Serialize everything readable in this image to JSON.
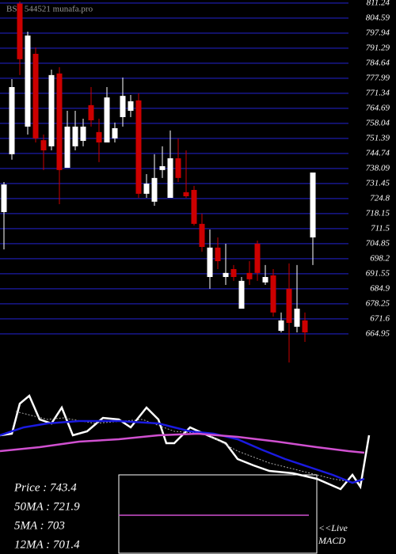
{
  "chart_data": [
    {
      "type": "candlestick",
      "title": "BSE 544521 munafa.pro",
      "up_color": "#ffffff",
      "down_color": "#cc0000",
      "grid_color": "#1c1ca8",
      "xlim": [
        -0.5,
        49.5
      ],
      "ylim": [
        651.6,
        812.6
      ],
      "yticks": [
        811.24,
        804.59,
        797.94,
        791.29,
        784.64,
        777.99,
        771.34,
        764.69,
        758.04,
        751.39,
        744.74,
        738.09,
        731.45,
        724.8,
        718.15,
        711.5,
        704.85,
        698.2,
        691.55,
        684.9,
        678.25,
        671.6,
        664.95
      ],
      "open": [
        718.8,
        744.4,
        811.0,
        756.6,
        788.8,
        750.6,
        747.9,
        780.1,
        738.4,
        747.9,
        750.3,
        766.1,
        754.2,
        749.6,
        751.4,
        760.8,
        763.6,
        768.2,
        726.9,
        723.4,
        737.4,
        725.1,
        742.6,
        727.6,
        728.6,
        713.6,
        690.1,
        703.1,
        690.1,
        693.6,
        676.1,
        691.9,
        704.8,
        687.7,
        690.8,
        666.3,
        684.9,
        668.1,
        670.9,
        707.6
      ],
      "high": [
        732.1,
        777.6,
        812.0,
        798.6,
        791.6,
        753.1,
        781.8,
        782.9,
        763.6,
        763.6,
        760.1,
        774.1,
        760.1,
        774.1,
        758.4,
        778.3,
        770.6,
        771.3,
        735.6,
        744.4,
        747.9,
        754.9,
        751.4,
        746.1,
        730.4,
        718.1,
        711.1,
        707.6,
        704.8,
        695.4,
        690.1,
        697.1,
        706.2,
        695.4,
        693.6,
        674.4,
        696.1,
        695.4,
        674.4,
        736.3
      ],
      "low": [
        702.3,
        742.0,
        779.4,
        753.1,
        749.6,
        737.4,
        746.1,
        722.3,
        738.4,
        746.1,
        747.9,
        756.6,
        740.9,
        749.6,
        749.6,
        756.6,
        760.8,
        725.1,
        725.1,
        721.6,
        733.9,
        725.1,
        732.1,
        725.1,
        712.9,
        701.3,
        684.9,
        693.6,
        686.6,
        688.4,
        676.1,
        686.6,
        688.4,
        686.6,
        672.6,
        665.6,
        652.3,
        665.6,
        661.4,
        695.4
      ],
      "close": [
        731.0,
        774.1,
        786.4,
        796.9,
        751.4,
        746.1,
        779.4,
        737.4,
        756.6,
        756.6,
        756.6,
        759.4,
        749.6,
        769.5,
        755.9,
        770.2,
        767.8,
        726.9,
        731.4,
        733.9,
        739.1,
        742.6,
        733.9,
        725.8,
        713.6,
        703.4,
        703.1,
        697.1,
        691.9,
        690.1,
        688.4,
        689.1,
        691.9,
        690.1,
        674.4,
        670.9,
        669.8,
        676.1,
        665.6,
        736.3
      ]
    },
    {
      "type": "line",
      "xlim": [
        0,
        50
      ],
      "ylim": [
        645,
        780
      ],
      "legend": [
        "Price   : 743.4",
        "50MA  : 721.9",
        "5MA  : 703",
        "12MA  : 701.4"
      ],
      "note": [
        "<<Live",
        "MACD"
      ],
      "series": [
        {
          "color": "#ffffff",
          "x": [
            0,
            1.5,
            2.5,
            3.7,
            5,
            6.5,
            7.8,
            9.2,
            11,
            13,
            15,
            16.5,
            18.5,
            20,
            21,
            22,
            24,
            26.2,
            28.5,
            30,
            32,
            34,
            37,
            40,
            43,
            44.5,
            45.5,
            46.6
          ],
          "values": [
            720,
            722,
            760,
            770,
            740,
            735,
            755,
            720,
            725,
            742,
            740,
            730,
            755,
            740,
            710,
            710,
            730,
            720,
            710,
            690,
            682,
            675,
            672,
            665,
            652,
            670,
            655,
            720
          ]
        },
        {
          "color": "#aaaaaa",
          "x": [
            2,
            4,
            6,
            8,
            12,
            18,
            22,
            26,
            30,
            34,
            38,
            42,
            45
          ],
          "values": [
            750,
            745,
            740,
            742,
            735,
            740,
            725,
            722,
            700,
            685,
            675,
            665,
            660
          ]
        },
        {
          "color": "#1a1ae0",
          "x": [
            0,
            3,
            6,
            10,
            15,
            20,
            24,
            27,
            30,
            33,
            36,
            39,
            42,
            44.5,
            46
          ],
          "values": [
            720,
            730,
            735,
            738,
            738,
            735,
            725,
            722,
            715,
            702,
            690,
            680,
            670,
            660,
            665
          ]
        },
        {
          "color": "#d050d0",
          "x": [
            0,
            5,
            10,
            15,
            20,
            25,
            30,
            35,
            40,
            44,
            46
          ],
          "values": [
            700,
            705,
            712,
            715,
            720,
            722,
            718,
            712,
            705,
            700,
            698
          ]
        }
      ]
    }
  ]
}
